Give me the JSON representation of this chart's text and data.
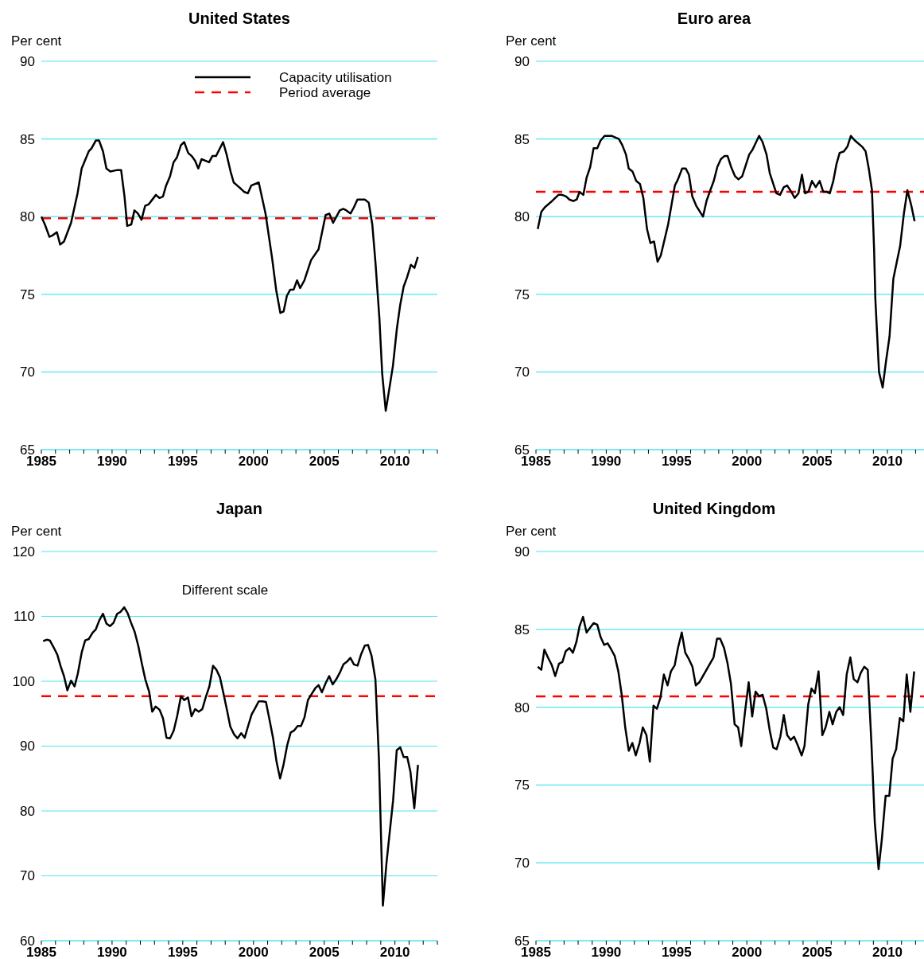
{
  "chart_data": [
    {
      "type": "line",
      "title": "United States",
      "ylabel": "Per cent",
      "legend": "top right",
      "grid": "y",
      "xlim": [
        1985,
        2013
      ],
      "ylim": [
        65,
        90
      ],
      "yticks": [
        65,
        70,
        75,
        80,
        85,
        90
      ],
      "xticks": [
        1985,
        {
          "value": 1986,
          "label": null
        },
        {
          "value": 1987,
          "label": null
        },
        {
          "value": 1988,
          "label": null
        },
        {
          "value": 1989,
          "label": null
        },
        1990,
        {
          "value": 1991,
          "label": null
        },
        {
          "value": 1992,
          "label": null
        },
        {
          "value": 1993,
          "label": null
        },
        {
          "value": 1994,
          "label": null
        },
        1995,
        {
          "value": 1996,
          "label": null
        },
        {
          "value": 1997,
          "label": null
        },
        {
          "value": 1998,
          "label": null
        },
        {
          "value": 1999,
          "label": null
        },
        2000,
        {
          "value": 2001,
          "label": null
        },
        {
          "value": 2002,
          "label": null
        },
        {
          "value": 2003,
          "label": null
        },
        {
          "value": 2004,
          "label": null
        },
        2005,
        {
          "value": 2006,
          "label": null
        },
        {
          "value": 2007,
          "label": null
        },
        {
          "value": 2008,
          "label": null
        },
        {
          "value": 2009,
          "label": null
        },
        2010,
        {
          "value": 2011,
          "label": null
        },
        {
          "value": 2012,
          "label": null
        },
        {
          "value": 2013,
          "label": null
        }
      ],
      "series": [
        {
          "name": "Capacity utilisation",
          "color": "#000000",
          "line_style": "solid",
          "x": [
            1985.0,
            1985.25,
            1985.57,
            1985.8,
            1986.1,
            1986.33,
            1986.6,
            1987.1,
            1987.56,
            1987.85,
            1988.35,
            1988.55,
            1988.85,
            1989.08,
            1989.36,
            1989.6,
            1989.88,
            1990.37,
            1990.64,
            1990.88,
            1991.07,
            1991.36,
            1991.58,
            1991.83,
            1992.08,
            1992.34,
            1992.6,
            1993.1,
            1993.35,
            1993.6,
            1993.82,
            1994.1,
            1994.35,
            1994.58,
            1994.87,
            1995.1,
            1995.38,
            1995.63,
            1995.87,
            1996.1,
            1996.33,
            1996.86,
            1997.09,
            1997.35,
            1997.85,
            1998.1,
            1998.38,
            1998.6,
            1998.85,
            1999.1,
            1999.33,
            1999.6,
            1999.84,
            2000.37,
            2000.85,
            2001.32,
            2001.6,
            2001.9,
            2002.13,
            2002.36,
            2002.6,
            2002.84,
            2003.08,
            2003.3,
            2003.6,
            2004.07,
            2004.6,
            2005.1,
            2005.36,
            2005.63,
            2006.1,
            2006.35,
            2006.57,
            2006.86,
            2007.1,
            2007.35,
            2007.87,
            2008.15,
            2008.4,
            2008.62,
            2008.9,
            2009.1,
            2009.35,
            2009.6,
            2009.86,
            2010.14,
            2010.37,
            2010.62,
            2010.86,
            2011.13,
            2011.38,
            2011.62
          ],
          "values": [
            80.0,
            79.5,
            78.7,
            78.8,
            79.0,
            78.2,
            78.4,
            79.6,
            81.5,
            83.1,
            84.2,
            84.4,
            84.9,
            84.9,
            84.2,
            83.1,
            82.9,
            83.0,
            83.0,
            81.3,
            79.4,
            79.5,
            80.4,
            80.2,
            79.8,
            80.7,
            80.8,
            81.4,
            81.2,
            81.3,
            82.0,
            82.6,
            83.5,
            83.8,
            84.6,
            84.8,
            84.1,
            83.9,
            83.6,
            83.1,
            83.7,
            83.5,
            83.9,
            83.9,
            84.8,
            84.0,
            82.9,
            82.2,
            82.0,
            81.8,
            81.6,
            81.5,
            82.0,
            82.2,
            80.2,
            77.3,
            75.3,
            73.8,
            73.9,
            74.9,
            75.3,
            75.3,
            75.9,
            75.4,
            75.9,
            77.2,
            77.9,
            80.1,
            80.2,
            79.6,
            80.4,
            80.5,
            80.4,
            80.2,
            80.6,
            81.1,
            81.1,
            80.9,
            79.5,
            77.1,
            73.5,
            69.9,
            67.5,
            68.9,
            70.4,
            72.8,
            74.3,
            75.5,
            76.1,
            76.9,
            76.7,
            77.4
          ]
        }
      ],
      "ref_lines": [
        {
          "axis": "y",
          "value": 79.9,
          "label": "Period average",
          "color": "#ff0000",
          "line_style": "dashed"
        }
      ]
    },
    {
      "type": "line",
      "title": "Euro area",
      "ylabel": "Per cent",
      "grid": "y",
      "xlim": [
        1985,
        2012.6
      ],
      "ylim": [
        65,
        90
      ],
      "yticks": [
        65,
        70,
        75,
        80,
        85,
        90
      ],
      "xticks": [
        1985,
        {
          "value": 1986,
          "label": null
        },
        {
          "value": 1987,
          "label": null
        },
        {
          "value": 1988,
          "label": null
        },
        {
          "value": 1989,
          "label": null
        },
        1990,
        {
          "value": 1991,
          "label": null
        },
        {
          "value": 1992,
          "label": null
        },
        {
          "value": 1993,
          "label": null
        },
        {
          "value": 1994,
          "label": null
        },
        1995,
        {
          "value": 1996,
          "label": null
        },
        {
          "value": 1997,
          "label": null
        },
        {
          "value": 1998,
          "label": null
        },
        {
          "value": 1999,
          "label": null
        },
        2000,
        {
          "value": 2001,
          "label": null
        },
        {
          "value": 2002,
          "label": null
        },
        {
          "value": 2003,
          "label": null
        },
        {
          "value": 2004,
          "label": null
        },
        2005,
        {
          "value": 2006,
          "label": null
        },
        {
          "value": 2007,
          "label": null
        },
        {
          "value": 2008,
          "label": null
        },
        {
          "value": 2009,
          "label": null
        },
        2010,
        {
          "value": 2011,
          "label": null
        },
        {
          "value": 2012,
          "label": null
        }
      ],
      "series": [
        {
          "color": "#000000",
          "line_style": "solid",
          "x": [
            1985.13,
            1985.38,
            1985.63,
            1986.14,
            1986.6,
            1986.86,
            1987.15,
            1987.38,
            1987.66,
            1987.9,
            1988.1,
            1988.37,
            1988.6,
            1988.86,
            1989.1,
            1989.36,
            1989.6,
            1989.88,
            1990.37,
            1990.9,
            1991.14,
            1991.4,
            1991.6,
            1991.87,
            1992.13,
            1992.4,
            1992.64,
            1992.9,
            1993.14,
            1993.4,
            1993.65,
            1993.88,
            1994.4,
            1994.88,
            1995.1,
            1995.4,
            1995.65,
            1995.88,
            1996.12,
            1996.4,
            1996.88,
            1997.13,
            1997.4,
            1997.65,
            1997.9,
            1998.15,
            1998.4,
            1998.63,
            1998.88,
            1999.16,
            1999.4,
            1999.67,
            2000.17,
            2000.4,
            2000.87,
            2001.12,
            2001.4,
            2001.63,
            2002.1,
            2002.36,
            2002.63,
            2002.87,
            2003.16,
            2003.4,
            2003.67,
            2003.92,
            2004.14,
            2004.38,
            2004.63,
            2004.9,
            2005.18,
            2005.43,
            2005.66,
            2005.9,
            2006.15,
            2006.38,
            2006.6,
            2006.9,
            2007.15,
            2007.4,
            2007.68,
            2008.2,
            2008.45,
            2008.67,
            2008.9,
            2009.05,
            2009.14,
            2009.4,
            2009.66,
            2009.9,
            2010.15,
            2010.42,
            2010.67,
            2010.9,
            2011.17,
            2011.42,
            2011.7,
            2011.93
          ],
          "values": [
            79.2,
            80.3,
            80.6,
            81.0,
            81.4,
            81.4,
            81.3,
            81.1,
            81.0,
            81.1,
            81.6,
            81.4,
            82.5,
            83.2,
            84.4,
            84.4,
            84.9,
            85.2,
            85.2,
            85.0,
            84.6,
            84.0,
            83.1,
            82.9,
            82.3,
            82.1,
            81.2,
            79.2,
            78.3,
            78.4,
            77.1,
            77.5,
            79.5,
            82.0,
            82.4,
            83.1,
            83.1,
            82.7,
            81.3,
            80.7,
            80.0,
            81.0,
            81.7,
            82.3,
            83.2,
            83.7,
            83.9,
            83.9,
            83.2,
            82.6,
            82.4,
            82.6,
            84.0,
            84.3,
            85.2,
            84.8,
            84.0,
            82.8,
            81.5,
            81.4,
            81.9,
            82.0,
            81.6,
            81.2,
            81.5,
            82.7,
            81.5,
            81.6,
            82.3,
            81.9,
            82.3,
            81.6,
            81.6,
            81.5,
            82.3,
            83.4,
            84.1,
            84.2,
            84.5,
            85.2,
            84.9,
            84.5,
            84.2,
            83.1,
            81.7,
            77.9,
            74.7,
            70.0,
            69.0,
            70.7,
            72.3,
            76.0,
            77.1,
            78.1,
            80.2,
            81.7,
            80.7,
            79.7
          ]
        }
      ],
      "ref_lines": [
        {
          "axis": "y",
          "value": 81.6,
          "color": "#ff0000",
          "line_style": "dashed"
        }
      ]
    },
    {
      "type": "line",
      "title": "Japan",
      "ylabel": "Per cent",
      "grid": "y",
      "annotations": [
        "Different scale"
      ],
      "xlim": [
        1985,
        2013
      ],
      "ylim": [
        60,
        120
      ],
      "yticks": [
        60,
        70,
        80,
        90,
        100,
        110,
        120
      ],
      "xticks": [
        1985,
        {
          "value": 1986,
          "label": null
        },
        {
          "value": 1987,
          "label": null
        },
        {
          "value": 1988,
          "label": null
        },
        {
          "value": 1989,
          "label": null
        },
        1990,
        {
          "value": 1991,
          "label": null
        },
        {
          "value": 1992,
          "label": null
        },
        {
          "value": 1993,
          "label": null
        },
        {
          "value": 1994,
          "label": null
        },
        1995,
        {
          "value": 1996,
          "label": null
        },
        {
          "value": 1997,
          "label": null
        },
        {
          "value": 1998,
          "label": null
        },
        {
          "value": 1999,
          "label": null
        },
        2000,
        {
          "value": 2001,
          "label": null
        },
        {
          "value": 2002,
          "label": null
        },
        {
          "value": 2003,
          "label": null
        },
        {
          "value": 2004,
          "label": null
        },
        2005,
        {
          "value": 2006,
          "label": null
        },
        {
          "value": 2007,
          "label": null
        },
        {
          "value": 2008,
          "label": null
        },
        {
          "value": 2009,
          "label": null
        },
        2010,
        {
          "value": 2011,
          "label": null
        },
        {
          "value": 2012,
          "label": null
        },
        {
          "value": 2013,
          "label": null
        }
      ],
      "series": [
        {
          "color": "#000000",
          "line_style": "solid",
          "x": [
            1985.13,
            1985.38,
            1985.6,
            1985.85,
            1986.13,
            1986.35,
            1986.6,
            1986.84,
            1987.1,
            1987.35,
            1987.58,
            1987.86,
            1988.1,
            1988.35,
            1988.63,
            1988.85,
            1989.1,
            1989.36,
            1989.6,
            1989.85,
            1990.1,
            1990.36,
            1990.6,
            1990.86,
            1991.1,
            1991.33,
            1991.6,
            1991.86,
            1992.1,
            1992.35,
            1992.62,
            1992.84,
            1993.08,
            1993.36,
            1993.6,
            1993.85,
            1994.1,
            1994.36,
            1994.6,
            1994.87,
            1995.1,
            1995.37,
            1995.62,
            1995.87,
            1996.13,
            1996.38,
            1996.62,
            1996.88,
            1997.14,
            1997.37,
            1997.63,
            1997.88,
            1998.12,
            1998.36,
            1998.63,
            1998.87,
            1999.13,
            1999.38,
            1999.62,
            1999.87,
            2000.13,
            2000.37,
            2000.62,
            2000.88,
            2001.12,
            2001.38,
            2001.63,
            2001.88,
            2002.12,
            2002.38,
            2002.63,
            2002.87,
            2003.12,
            2003.36,
            2003.6,
            2003.85,
            2004.1,
            2004.36,
            2004.6,
            2004.84,
            2005.1,
            2005.35,
            2005.6,
            2005.85,
            2006.1,
            2006.36,
            2006.6,
            2006.85,
            2007.1,
            2007.36,
            2007.6,
            2007.87,
            2008.1,
            2008.35,
            2008.62,
            2008.87,
            2009.15,
            2009.4,
            2009.64,
            2009.87,
            2010.13,
            2010.38,
            2010.62,
            2010.87,
            2011.1,
            2011.37,
            2011.63
          ],
          "values": [
            106.2,
            106.4,
            106.3,
            105.3,
            104.1,
            102.4,
            100.8,
            98.6,
            100.1,
            99.2,
            101.2,
            104.5,
            106.3,
            106.5,
            107.5,
            108.0,
            109.4,
            110.4,
            108.9,
            108.5,
            109.0,
            110.4,
            110.7,
            111.4,
            110.5,
            109.1,
            107.6,
            105.4,
            102.8,
            100.3,
            98.4,
            95.3,
            96.1,
            95.6,
            94.3,
            91.3,
            91.2,
            92.4,
            94.6,
            97.7,
            97.1,
            97.5,
            94.6,
            95.7,
            95.3,
            95.7,
            97.5,
            99.2,
            102.4,
            101.8,
            100.6,
            98.1,
            95.6,
            93.0,
            91.8,
            91.2,
            92.0,
            91.3,
            93.1,
            94.9,
            95.9,
            96.9,
            96.9,
            96.8,
            94.2,
            91.3,
            87.6,
            85.0,
            87.1,
            90.1,
            92.1,
            92.4,
            93.1,
            93.1,
            94.4,
            97.1,
            98.0,
            98.9,
            99.4,
            98.3,
            99.7,
            100.8,
            99.5,
            100.3,
            101.3,
            102.6,
            103.0,
            103.6,
            102.6,
            102.4,
            104.1,
            105.5,
            105.6,
            103.9,
            100.3,
            88.0,
            65.4,
            71.9,
            76.9,
            81.6,
            89.4,
            89.8,
            88.3,
            88.3,
            86.0,
            80.4,
            87.1
          ]
        }
      ],
      "ref_lines": [
        {
          "axis": "y",
          "value": 97.7,
          "color": "#ff0000",
          "line_style": "dashed"
        }
      ]
    },
    {
      "type": "line",
      "title": "United Kingdom",
      "ylabel": "Per cent",
      "grid": "y",
      "xlim": [
        1985,
        2012.6
      ],
      "ylim": [
        65,
        90
      ],
      "yticks": [
        65,
        70,
        75,
        80,
        85,
        90
      ],
      "xticks": [
        1985,
        {
          "value": 1986,
          "label": null
        },
        {
          "value": 1987,
          "label": null
        },
        {
          "value": 1988,
          "label": null
        },
        {
          "value": 1989,
          "label": null
        },
        1990,
        {
          "value": 1991,
          "label": null
        },
        {
          "value": 1992,
          "label": null
        },
        {
          "value": 1993,
          "label": null
        },
        {
          "value": 1994,
          "label": null
        },
        1995,
        {
          "value": 1996,
          "label": null
        },
        {
          "value": 1997,
          "label": null
        },
        {
          "value": 1998,
          "label": null
        },
        {
          "value": 1999,
          "label": null
        },
        2000,
        {
          "value": 2001,
          "label": null
        },
        {
          "value": 2002,
          "label": null
        },
        {
          "value": 2003,
          "label": null
        },
        {
          "value": 2004,
          "label": null
        },
        2005,
        {
          "value": 2006,
          "label": null
        },
        {
          "value": 2007,
          "label": null
        },
        {
          "value": 2008,
          "label": null
        },
        {
          "value": 2009,
          "label": null
        },
        2010,
        {
          "value": 2011,
          "label": null
        },
        {
          "value": 2012,
          "label": null
        }
      ],
      "series": [
        {
          "color": "#000000",
          "line_style": "solid",
          "x": [
            1985.13,
            1985.38,
            1985.6,
            1985.85,
            1986.13,
            1986.37,
            1986.64,
            1986.88,
            1987.12,
            1987.38,
            1987.63,
            1987.88,
            1988.1,
            1988.35,
            1988.6,
            1988.85,
            1989.1,
            1989.36,
            1989.6,
            1989.85,
            1990.1,
            1990.36,
            1990.6,
            1990.86,
            1991.1,
            1991.35,
            1991.6,
            1991.86,
            1992.1,
            1992.37,
            1992.6,
            1992.86,
            1993.1,
            1993.36,
            1993.6,
            1993.85,
            1994.1,
            1994.36,
            1994.6,
            1994.87,
            1995.1,
            1995.37,
            1995.62,
            1995.87,
            1996.13,
            1996.37,
            1996.62,
            1997.63,
            1997.88,
            1998.1,
            1998.38,
            1998.63,
            1998.87,
            1999.13,
            1999.38,
            1999.6,
            1999.87,
            2000.13,
            2000.38,
            2000.62,
            2000.88,
            2001.12,
            2001.38,
            2001.63,
            2001.88,
            2002.12,
            2002.38,
            2002.63,
            2002.87,
            2003.12,
            2003.36,
            2003.6,
            2003.9,
            2004.1,
            2004.37,
            2004.6,
            2004.84,
            2005.1,
            2005.37,
            2005.6,
            2005.87,
            2006.1,
            2006.36,
            2006.6,
            2006.85,
            2007.1,
            2007.36,
            2007.6,
            2007.87,
            2008.1,
            2008.35,
            2008.6,
            2008.87,
            2009.1,
            2009.37,
            2009.6,
            2009.87,
            2010.13,
            2010.37,
            2010.62,
            2010.88,
            2011.13,
            2011.37,
            2011.63,
            2011.9
          ],
          "values": [
            82.6,
            82.4,
            83.7,
            83.2,
            82.7,
            82.0,
            82.8,
            82.9,
            83.6,
            83.8,
            83.5,
            84.2,
            85.2,
            85.8,
            84.8,
            85.1,
            85.4,
            85.3,
            84.5,
            84.0,
            84.1,
            83.7,
            83.3,
            82.3,
            80.8,
            78.7,
            77.2,
            77.7,
            76.9,
            77.7,
            78.7,
            78.2,
            76.5,
            80.1,
            79.9,
            80.6,
            82.1,
            81.4,
            82.3,
            82.7,
            83.8,
            84.8,
            83.5,
            83.1,
            82.6,
            81.4,
            81.6,
            83.2,
            84.4,
            84.4,
            83.8,
            82.8,
            81.5,
            78.9,
            78.7,
            77.5,
            79.7,
            81.6,
            79.4,
            81.0,
            80.7,
            80.8,
            79.9,
            78.5,
            77.4,
            77.3,
            78.1,
            79.5,
            78.2,
            77.9,
            78.1,
            77.6,
            76.9,
            77.5,
            80.2,
            81.2,
            80.9,
            82.3,
            78.2,
            78.7,
            79.7,
            78.9,
            79.7,
            80.0,
            79.5,
            82.1,
            83.2,
            81.8,
            81.6,
            82.2,
            82.6,
            82.4,
            77.5,
            72.6,
            69.6,
            71.5,
            74.3,
            74.3,
            76.7,
            77.3,
            79.3,
            79.1,
            82.1,
            79.7,
            82.3
          ]
        }
      ],
      "ref_lines": [
        {
          "axis": "y",
          "value": 80.7,
          "color": "#ff0000",
          "line_style": "dashed"
        }
      ]
    }
  ]
}
